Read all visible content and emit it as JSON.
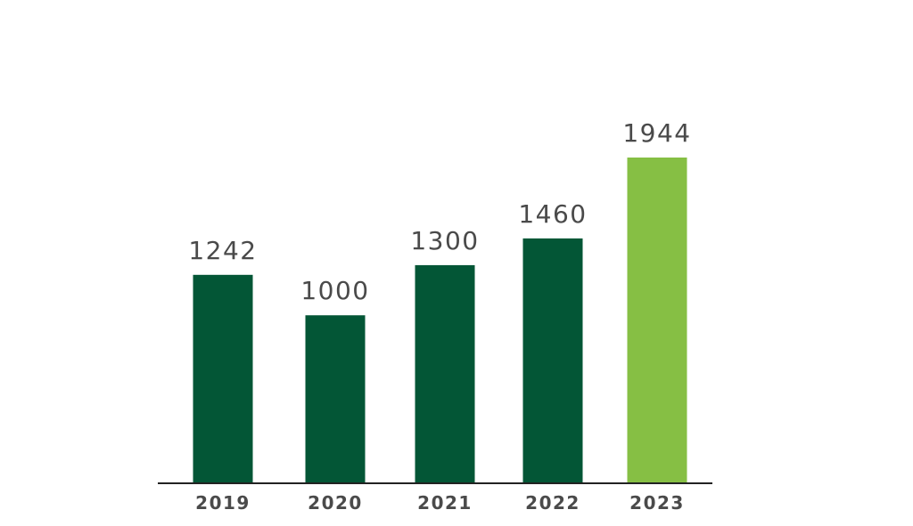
{
  "chart_data": {
    "type": "bar",
    "categories": [
      "2019",
      "2020",
      "2021",
      "2022",
      "2023"
    ],
    "values": [
      1242,
      1000,
      1300,
      1460,
      1944
    ],
    "title": "",
    "xlabel": "",
    "ylabel": "",
    "ylim": [
      0,
      2300
    ],
    "grid": false,
    "legend": "none",
    "colors": {
      "default_bar": "#035636",
      "highlight_bar": "#86BF44",
      "highlight_index": 4,
      "axis": "#222222",
      "label": "#4a4a4a"
    }
  }
}
